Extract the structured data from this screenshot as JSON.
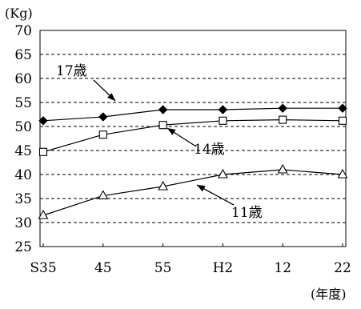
{
  "chart_data": {
    "type": "line",
    "y_unit_label": "(Kg)",
    "x_unit_label": "(年度)",
    "categories": [
      "S35",
      "45",
      "55",
      "H2",
      "12",
      "22"
    ],
    "ylim": [
      25,
      70
    ],
    "yticks": [
      25,
      30,
      35,
      40,
      45,
      50,
      55,
      60,
      65,
      70
    ],
    "grid": "horizontal-dashed",
    "legend": "none",
    "series": [
      {
        "name": "17歳",
        "marker": "diamond-filled",
        "values": [
          51.2,
          52.0,
          53.5,
          53.5,
          53.8,
          53.8
        ]
      },
      {
        "name": "14歳",
        "marker": "square-open",
        "values": [
          44.7,
          48.3,
          50.3,
          51.2,
          51.4,
          51.2
        ]
      },
      {
        "name": "11歳",
        "marker": "triangle-open",
        "values": [
          31.5,
          35.6,
          37.5,
          40.0,
          41.0,
          40.0
        ]
      }
    ],
    "colors": {
      "line": "#000000",
      "grid": "#000000",
      "background": "#ffffff"
    }
  }
}
